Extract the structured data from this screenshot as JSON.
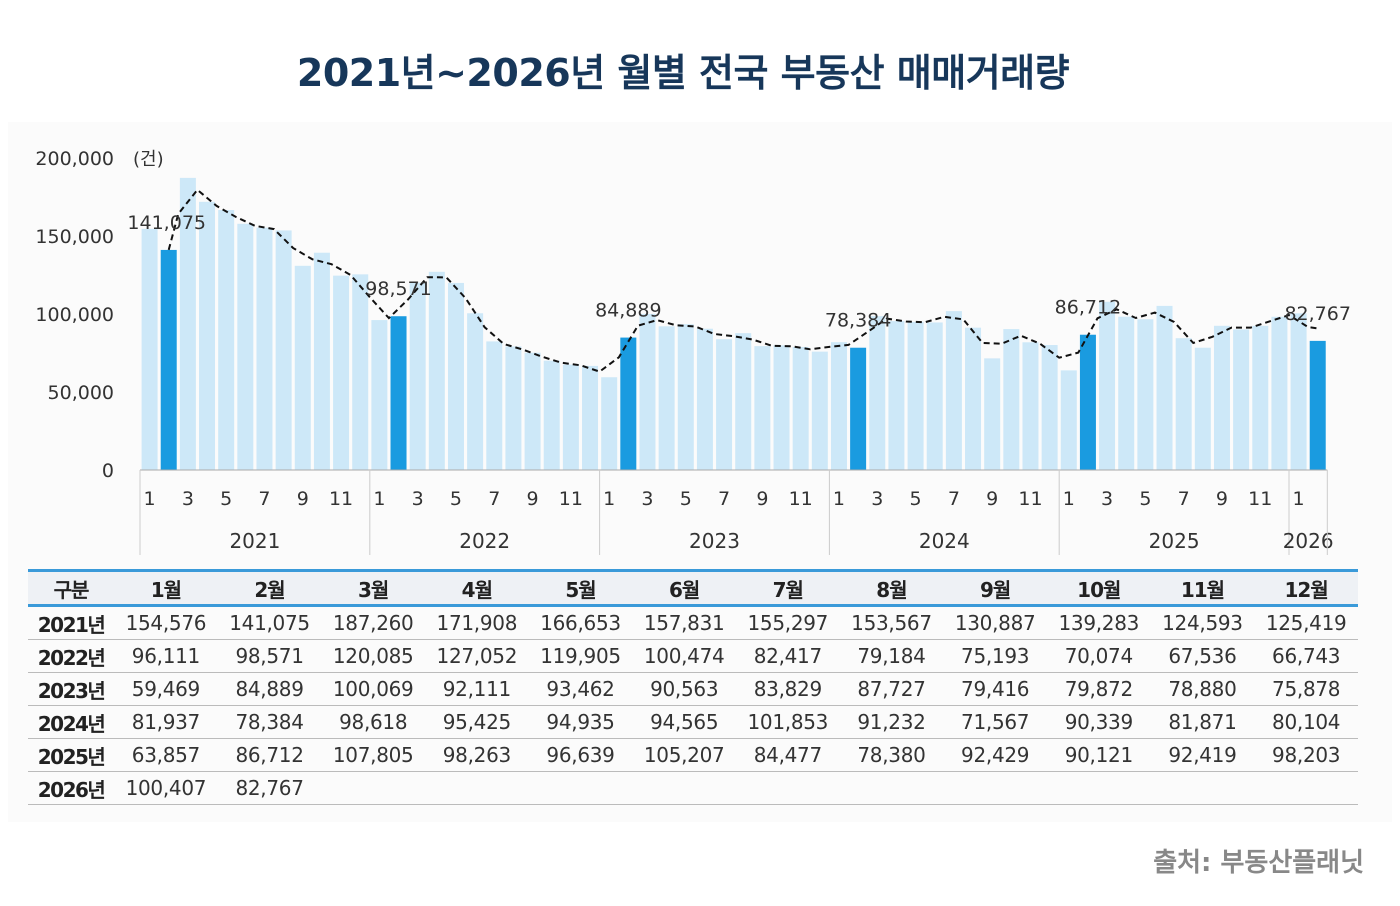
{
  "title": "2021년~2026년 월별 전국 부동산 매매거래량",
  "source": "출처: 부동산플래닛",
  "colors": {
    "bar": "#cde8f8",
    "highlight_bar": "#1a9be0",
    "line": "#111111",
    "title": "#17375a",
    "table_rule": "#3a9ad9"
  },
  "chart_data": {
    "type": "bar",
    "title": "",
    "ylabel": "(건)",
    "ylim": [
      0,
      200000
    ],
    "yticks": [
      "0",
      "50,000",
      "100,000",
      "150,000",
      "200,000"
    ],
    "ytick_values": [
      0,
      50000,
      100000,
      150000,
      200000
    ],
    "x_month_ticks": [
      "1",
      "3",
      "5",
      "7",
      "9",
      "11"
    ],
    "years": [
      "2021",
      "2022",
      "2023",
      "2024",
      "2025",
      "2026"
    ],
    "series": [
      {
        "values": [
          154576,
          141075,
          187260,
          171908,
          166653,
          157831,
          155297,
          153567,
          130887,
          139283,
          124593,
          125419,
          96111,
          98571,
          120085,
          127052,
          119905,
          100474,
          82417,
          79184,
          75193,
          70074,
          67536,
          66743,
          59469,
          84889,
          100069,
          92111,
          93462,
          90563,
          83829,
          87727,
          79416,
          79872,
          78880,
          75878,
          81937,
          78384,
          98618,
          95425,
          94935,
          94565,
          101853,
          91232,
          71567,
          90339,
          81871,
          80104,
          63857,
          86712,
          107805,
          98263,
          96639,
          105207,
          84477,
          78380,
          92429,
          90121,
          92419,
          98203,
          100407,
          82767
        ]
      }
    ],
    "highlighted_month": 2,
    "data_labels": [
      "141,075",
      "98,571",
      "84,889",
      "78,384",
      "86,712",
      "82,767"
    ],
    "trend_line": "dashed",
    "grid": false
  },
  "table": {
    "headers": [
      "구분",
      "1월",
      "2월",
      "3월",
      "4월",
      "5월",
      "6월",
      "7월",
      "8월",
      "9월",
      "10월",
      "11월",
      "12월"
    ],
    "rows": [
      [
        "2021년",
        "154,576",
        "141,075",
        "187,260",
        "171,908",
        "166,653",
        "157,831",
        "155,297",
        "153,567",
        "130,887",
        "139,283",
        "124,593",
        "125,419"
      ],
      [
        "2022년",
        "96,111",
        "98,571",
        "120,085",
        "127,052",
        "119,905",
        "100,474",
        "82,417",
        "79,184",
        "75,193",
        "70,074",
        "67,536",
        "66,743"
      ],
      [
        "2023년",
        "59,469",
        "84,889",
        "100,069",
        "92,111",
        "93,462",
        "90,563",
        "83,829",
        "87,727",
        "79,416",
        "79,872",
        "78,880",
        "75,878"
      ],
      [
        "2024년",
        "81,937",
        "78,384",
        "98,618",
        "95,425",
        "94,935",
        "94,565",
        "101,853",
        "91,232",
        "71,567",
        "90,339",
        "81,871",
        "80,104"
      ],
      [
        "2025년",
        "63,857",
        "86,712",
        "107,805",
        "98,263",
        "96,639",
        "105,207",
        "84,477",
        "78,380",
        "92,429",
        "90,121",
        "92,419",
        "98,203"
      ],
      [
        "2026년",
        "100,407",
        "82,767",
        "",
        "",
        "",
        "",
        "",
        "",
        "",
        "",
        "",
        ""
      ]
    ]
  }
}
